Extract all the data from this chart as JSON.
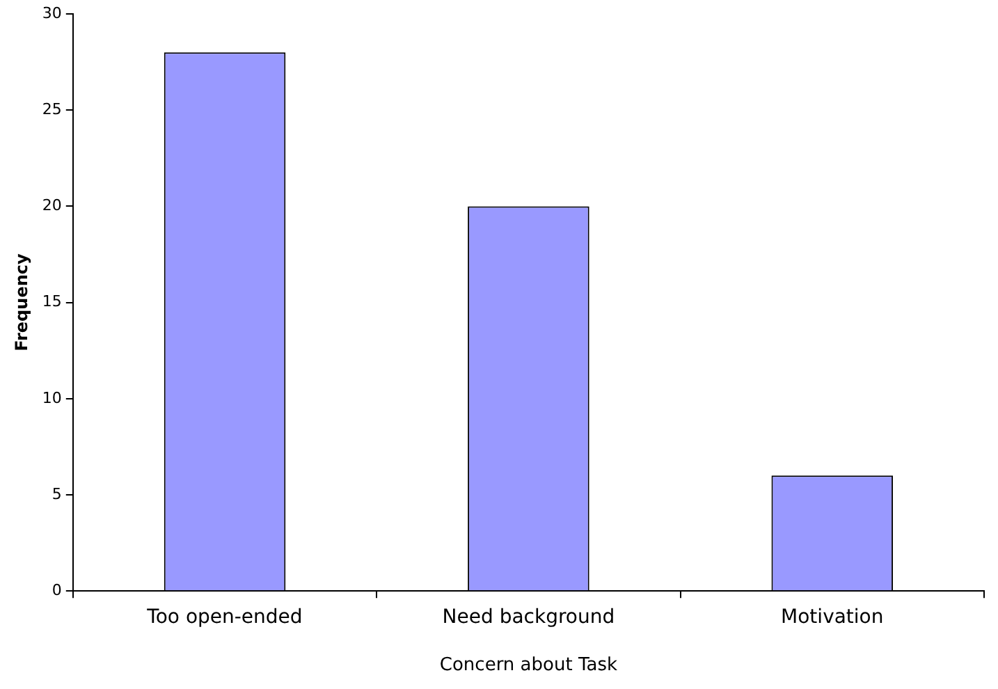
{
  "chart_data": {
    "type": "bar",
    "xlabel": "Concern about Task",
    "ylabel": "Frequency",
    "categories": [
      "Too open-ended",
      "Need background",
      "Motivation"
    ],
    "values": [
      28,
      20,
      6
    ],
    "color": "#9999ff",
    "ylim": [
      0,
      30
    ],
    "yticks": [
      0,
      5,
      10,
      15,
      20,
      25,
      30
    ],
    "grid": false,
    "legend": false
  }
}
